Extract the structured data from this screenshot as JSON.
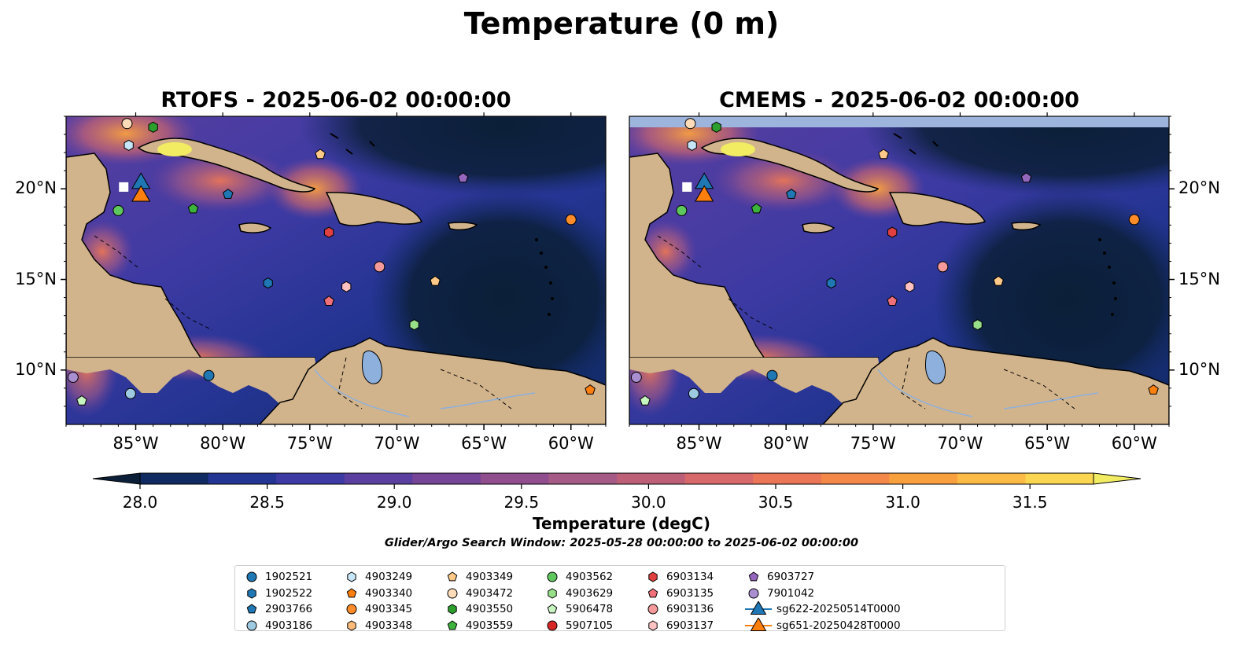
{
  "title": "Temperature (0 m)",
  "panels": [
    {
      "title": "RTOFS - 2025-06-02 00:00:00"
    },
    {
      "title": "CMEMS - 2025-06-02 00:00:00"
    }
  ],
  "x_ticks": [
    "85°W",
    "80°W",
    "75°W",
    "70°W",
    "65°W",
    "60°W"
  ],
  "y_ticks": [
    "20°N",
    "15°N",
    "10°N"
  ],
  "colorbar": {
    "label": "Temperature (degC)",
    "ticks": [
      "28.0",
      "28.5",
      "29.0",
      "29.5",
      "30.0",
      "30.5",
      "31.0",
      "31.5"
    ],
    "colors": [
      "#0b1f38",
      "#102a62",
      "#243492",
      "#3d3aa3",
      "#5a3fa0",
      "#764597",
      "#904e8e",
      "#a65a86",
      "#bd6077",
      "#d8696a",
      "#ea7657",
      "#f38849",
      "#f9a03e",
      "#fbbb46",
      "#fad651",
      "#f1ec62"
    ]
  },
  "search_window": "Glider/Argo Search Window: 2025-05-28 00:00:00 to 2025-06-02 00:00:00",
  "legend": [
    {
      "label": "1902521",
      "marker": "circle",
      "color": "#1f77b4"
    },
    {
      "label": "1902522",
      "marker": "hexagon",
      "color": "#1f77b4"
    },
    {
      "label": "2903766",
      "marker": "pentagon",
      "color": "#1f77b4"
    },
    {
      "label": "4903186",
      "marker": "circle",
      "color": "#9ecae1"
    },
    {
      "label": "4903249",
      "marker": "hexagon",
      "color": "#c6e6f7"
    },
    {
      "label": "4903340",
      "marker": "pentagon",
      "color": "#ff7f0e"
    },
    {
      "label": "4903345",
      "marker": "circle",
      "color": "#ff8c2a"
    },
    {
      "label": "4903348",
      "marker": "hexagon",
      "color": "#ffbb78"
    },
    {
      "label": "4903349",
      "marker": "pentagon",
      "color": "#ffc98a"
    },
    {
      "label": "4903472",
      "marker": "circle",
      "color": "#ffdcb9"
    },
    {
      "label": "4903550",
      "marker": "hexagon",
      "color": "#2ca02c"
    },
    {
      "label": "4903559",
      "marker": "pentagon",
      "color": "#3cb43c"
    },
    {
      "label": "4903562",
      "marker": "circle",
      "color": "#5ec85e"
    },
    {
      "label": "4903629",
      "marker": "hexagon",
      "color": "#98df8a"
    },
    {
      "label": "5906478",
      "marker": "pentagon",
      "color": "#c7f5c0"
    },
    {
      "label": "5907105",
      "marker": "circle",
      "color": "#d62728"
    },
    {
      "label": "6903134",
      "marker": "hexagon",
      "color": "#e04040"
    },
    {
      "label": "6903135",
      "marker": "pentagon",
      "color": "#f0707a"
    },
    {
      "label": "6903136",
      "marker": "circle",
      "color": "#f49a9a"
    },
    {
      "label": "6903137",
      "marker": "hexagon",
      "color": "#ffc2c2"
    },
    {
      "label": "6903727",
      "marker": "pentagon",
      "color": "#9467bd"
    },
    {
      "label": "7901042",
      "marker": "circle",
      "color": "#a98ed0"
    },
    {
      "label": "sg622-20250514T0000",
      "marker": "triangle",
      "color": "#1f77b4"
    },
    {
      "label": "sg651-20250428T0000",
      "marker": "triangle",
      "color": "#ff7f0e"
    }
  ],
  "map_extent": {
    "lon": [
      -89,
      -58
    ],
    "lat": [
      7,
      24
    ]
  },
  "floats": [
    {
      "id": "4903472",
      "lon": -85.5,
      "lat": 23.6
    },
    {
      "id": "4903550",
      "lon": -84.0,
      "lat": 23.4
    },
    {
      "id": "4903249",
      "lon": -85.4,
      "lat": 22.4
    },
    {
      "id": "4903562",
      "lon": -86.0,
      "lat": 18.8
    },
    {
      "id": "4903559",
      "lon": -81.7,
      "lat": 18.9
    },
    {
      "id": "2903766",
      "lon": -79.7,
      "lat": 19.7
    },
    {
      "id": "4903349",
      "lon": -74.4,
      "lat": 21.9
    },
    {
      "id": "6903134",
      "lon": -73.9,
      "lat": 17.6
    },
    {
      "id": "6903727",
      "lon": -66.2,
      "lat": 20.6
    },
    {
      "id": "4903345",
      "lon": -60.0,
      "lat": 18.3
    },
    {
      "id": "6903136",
      "lon": -71.0,
      "lat": 15.7
    },
    {
      "id": "6903137",
      "lon": -72.9,
      "lat": 14.6
    },
    {
      "id": "4903349",
      "lon": -67.8,
      "lat": 14.9
    },
    {
      "id": "1902522",
      "lon": -77.4,
      "lat": 14.8
    },
    {
      "id": "6903135",
      "lon": -73.9,
      "lat": 13.8
    },
    {
      "id": "4903629",
      "lon": -69.0,
      "lat": 12.5
    },
    {
      "id": "1902521",
      "lon": -80.8,
      "lat": 9.7
    },
    {
      "id": "4903186",
      "lon": -85.3,
      "lat": 8.7
    },
    {
      "id": "7901042",
      "lon": -88.6,
      "lat": 9.6
    },
    {
      "id": "5906478",
      "lon": -88.1,
      "lat": 8.3
    },
    {
      "id": "4903340",
      "lon": -58.9,
      "lat": 8.9
    }
  ],
  "gliders": [
    {
      "id": "sg622-20250514T0000",
      "lon": -84.7,
      "lat": 20.3
    },
    {
      "id": "sg651-20250428T0000",
      "lon": -84.7,
      "lat": 19.6
    }
  ]
}
